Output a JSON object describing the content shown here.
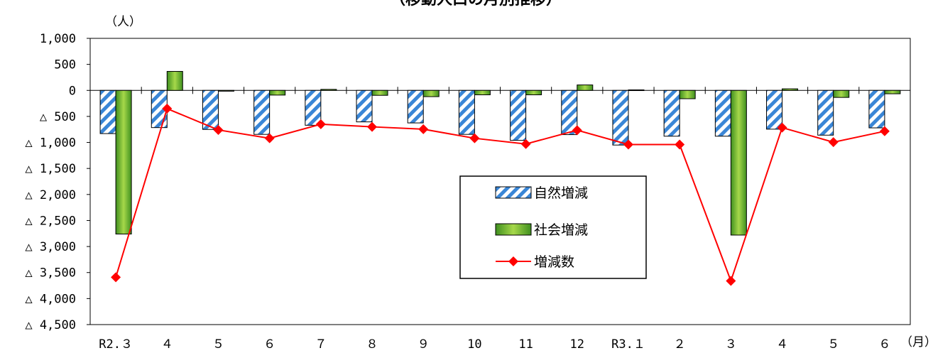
{
  "chart_data": {
    "type": "bar",
    "title": "（移動人口の月別推移）",
    "y_unit": "（人）",
    "x_unit": "（月）",
    "categories": [
      "R2.３",
      "４",
      "５",
      "６",
      "７",
      "８",
      "９",
      "10",
      "11",
      "12",
      "R3.１",
      "２",
      "３",
      "４",
      "５",
      "６"
    ],
    "series": [
      {
        "name": "自然増減",
        "kind": "bar",
        "pattern": "diagonal-stripes",
        "color": "#3a86d6",
        "values": [
          -830,
          -715,
          -750,
          -845,
          -670,
          -605,
          -625,
          -845,
          -960,
          -850,
          -1050,
          -880,
          -880,
          -745,
          -860,
          -720
        ]
      },
      {
        "name": "社会増減",
        "kind": "bar",
        "pattern": "green-gradient",
        "color": "#4ea12a",
        "values": [
          -2760,
          365,
          -15,
          -90,
          20,
          -95,
          -120,
          -85,
          -85,
          105,
          10,
          -160,
          -2780,
          30,
          -135,
          -65
        ]
      },
      {
        "name": "増減数",
        "kind": "line",
        "marker": "diamond",
        "color": "#ff0000",
        "values": [
          -3590,
          -350,
          -760,
          -920,
          -650,
          -700,
          -745,
          -920,
          -1030,
          -765,
          -1040,
          -1040,
          -3660,
          -715,
          -995,
          -785
        ]
      }
    ],
    "ylim": [
      -4500,
      1000
    ],
    "yticks": [
      1000,
      500,
      0,
      -500,
      -1000,
      -1500,
      -2000,
      -2500,
      -3000,
      -3500,
      -4000,
      -4500
    ],
    "ytick_labels": [
      "1,000",
      "500",
      "0",
      "△ 500",
      "△ 1,000",
      "△ 1,500",
      "△ 2,000",
      "△ 2,500",
      "△ 3,000",
      "△ 3,500",
      "△ 4,000",
      "△ 4,500"
    ],
    "grid": false,
    "legend_position": "center-right"
  }
}
